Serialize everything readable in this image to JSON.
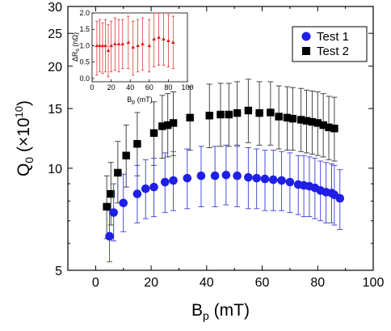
{
  "chart_data": [
    {
      "type": "scatter",
      "xlabel": "B",
      "xlabel_sub": "p",
      "xlabel_unit": " (mT)",
      "ylabel": "Q",
      "ylabel_sub": "0",
      "ylabel_unit_open": " (×10",
      "ylabel_sup": "10",
      "ylabel_unit_close": ")",
      "xlim": [
        -10,
        100
      ],
      "ylim": [
        5,
        30
      ],
      "yscale": "log",
      "x_ticks": [
        0,
        20,
        40,
        60,
        80,
        100
      ],
      "y_ticks": [
        5,
        10,
        15,
        20,
        25,
        30
      ],
      "legend_position": "top-right",
      "series": [
        {
          "name": "Test 1",
          "marker": "circle",
          "color": "#1f1fe6",
          "errorbar_color": "#3a3ad8",
          "points": [
            {
              "x": 5,
              "y": 6.3,
              "ylo": 5.3,
              "yhi": 7.5
            },
            {
              "x": 6.5,
              "y": 7.4,
              "ylo": 6.1,
              "yhi": 9.0
            },
            {
              "x": 10,
              "y": 7.9,
              "ylo": 6.5,
              "yhi": 9.6
            },
            {
              "x": 15,
              "y": 8.4,
              "ylo": 6.9,
              "yhi": 10.2
            },
            {
              "x": 18,
              "y": 8.7,
              "ylo": 7.1,
              "yhi": 10.6
            },
            {
              "x": 21,
              "y": 8.8,
              "ylo": 7.2,
              "yhi": 10.7
            },
            {
              "x": 25,
              "y": 9.1,
              "ylo": 7.4,
              "yhi": 11.1
            },
            {
              "x": 28,
              "y": 9.2,
              "ylo": 7.5,
              "yhi": 11.2
            },
            {
              "x": 33,
              "y": 9.35,
              "ylo": 7.6,
              "yhi": 11.4
            },
            {
              "x": 38,
              "y": 9.5,
              "ylo": 7.7,
              "yhi": 11.6
            },
            {
              "x": 43,
              "y": 9.5,
              "ylo": 7.7,
              "yhi": 11.6
            },
            {
              "x": 47,
              "y": 9.55,
              "ylo": 7.8,
              "yhi": 11.7
            },
            {
              "x": 51,
              "y": 9.5,
              "ylo": 7.7,
              "yhi": 11.6
            },
            {
              "x": 55,
              "y": 9.4,
              "ylo": 7.6,
              "yhi": 11.5
            },
            {
              "x": 58,
              "y": 9.35,
              "ylo": 7.6,
              "yhi": 11.4
            },
            {
              "x": 61,
              "y": 9.3,
              "ylo": 7.5,
              "yhi": 11.3
            },
            {
              "x": 64,
              "y": 9.25,
              "ylo": 7.5,
              "yhi": 11.3
            },
            {
              "x": 67,
              "y": 9.2,
              "ylo": 7.5,
              "yhi": 11.2
            },
            {
              "x": 70,
              "y": 9.1,
              "ylo": 7.4,
              "yhi": 11.1
            },
            {
              "x": 73,
              "y": 8.95,
              "ylo": 7.3,
              "yhi": 10.9
            },
            {
              "x": 75,
              "y": 8.9,
              "ylo": 7.2,
              "yhi": 10.9
            },
            {
              "x": 77,
              "y": 8.85,
              "ylo": 7.2,
              "yhi": 10.8
            },
            {
              "x": 79,
              "y": 8.75,
              "ylo": 7.1,
              "yhi": 10.7
            },
            {
              "x": 81,
              "y": 8.6,
              "ylo": 7.0,
              "yhi": 10.5
            },
            {
              "x": 83,
              "y": 8.5,
              "ylo": 6.9,
              "yhi": 10.4
            },
            {
              "x": 85,
              "y": 8.45,
              "ylo": 6.9,
              "yhi": 10.3
            },
            {
              "x": 86,
              "y": 8.35,
              "ylo": 6.8,
              "yhi": 10.2
            },
            {
              "x": 88,
              "y": 8.15,
              "ylo": 6.6,
              "yhi": 9.9
            }
          ]
        },
        {
          "name": "Test 2",
          "marker": "square",
          "color": "#000000",
          "errorbar_color": "#333333",
          "points": [
            {
              "x": 4,
              "y": 7.7,
              "ylo": 6.2,
              "yhi": 9.5
            },
            {
              "x": 5.5,
              "y": 8.4,
              "ylo": 6.8,
              "yhi": 10.4
            },
            {
              "x": 8,
              "y": 9.7,
              "ylo": 7.9,
              "yhi": 12.0
            },
            {
              "x": 11,
              "y": 10.9,
              "ylo": 8.8,
              "yhi": 13.4
            },
            {
              "x": 15,
              "y": 11.8,
              "ylo": 9.5,
              "yhi": 14.6
            },
            {
              "x": 21,
              "y": 12.7,
              "ylo": 10.2,
              "yhi": 15.7
            },
            {
              "x": 24,
              "y": 13.3,
              "ylo": 10.7,
              "yhi": 16.4
            },
            {
              "x": 26,
              "y": 13.4,
              "ylo": 10.8,
              "yhi": 16.6
            },
            {
              "x": 28,
              "y": 13.6,
              "ylo": 10.9,
              "yhi": 16.8
            },
            {
              "x": 34,
              "y": 14.1,
              "ylo": 11.3,
              "yhi": 17.4
            },
            {
              "x": 41,
              "y": 14.3,
              "ylo": 11.5,
              "yhi": 17.7
            },
            {
              "x": 45,
              "y": 14.4,
              "ylo": 11.6,
              "yhi": 17.8
            },
            {
              "x": 48,
              "y": 14.4,
              "ylo": 11.6,
              "yhi": 17.8
            },
            {
              "x": 51,
              "y": 14.55,
              "ylo": 11.7,
              "yhi": 18.0
            },
            {
              "x": 55,
              "y": 14.8,
              "ylo": 11.9,
              "yhi": 18.3
            },
            {
              "x": 59,
              "y": 14.55,
              "ylo": 11.7,
              "yhi": 18.0
            },
            {
              "x": 63,
              "y": 14.6,
              "ylo": 11.7,
              "yhi": 18.0
            },
            {
              "x": 66,
              "y": 14.2,
              "ylo": 11.4,
              "yhi": 17.5
            },
            {
              "x": 69,
              "y": 14.1,
              "ylo": 11.3,
              "yhi": 17.4
            },
            {
              "x": 71,
              "y": 14.0,
              "ylo": 11.3,
              "yhi": 17.3
            },
            {
              "x": 74,
              "y": 13.9,
              "ylo": 11.2,
              "yhi": 17.2
            },
            {
              "x": 76,
              "y": 13.8,
              "ylo": 11.1,
              "yhi": 17.0
            },
            {
              "x": 78,
              "y": 13.7,
              "ylo": 11.0,
              "yhi": 16.9
            },
            {
              "x": 80,
              "y": 13.6,
              "ylo": 10.9,
              "yhi": 16.8
            },
            {
              "x": 82,
              "y": 13.4,
              "ylo": 10.8,
              "yhi": 16.6
            },
            {
              "x": 84,
              "y": 13.2,
              "ylo": 10.6,
              "yhi": 16.3
            },
            {
              "x": 86,
              "y": 13.1,
              "ylo": 10.5,
              "yhi": 16.2
            }
          ]
        }
      ]
    },
    {
      "type": "scatter",
      "xlabel": "B",
      "xlabel_sub": "p",
      "xlabel_unit": " (mT)",
      "ylabel": "ΔR",
      "ylabel_sub": "s",
      "ylabel_unit": " (nΩ)",
      "xlim": [
        0,
        100
      ],
      "ylim": [
        -0.1,
        2.0
      ],
      "x_ticks": [
        0,
        20,
        40,
        60,
        80,
        100
      ],
      "y_ticks": [
        0.0,
        0.5,
        1.0,
        1.5,
        2.0
      ],
      "y_tick_labels": [
        "0.0",
        "0.5",
        "1.0",
        "1.5",
        "2.0"
      ],
      "series": [
        {
          "marker": "triangle",
          "color": "#e02020",
          "points": [
            {
              "x": 5,
              "y": 1.0,
              "ylo": 0.1,
              "yhi": 1.75
            },
            {
              "x": 8,
              "y": 1.0,
              "ylo": 0.2,
              "yhi": 1.8
            },
            {
              "x": 11,
              "y": 1.0,
              "ylo": 0.15,
              "yhi": 1.7
            },
            {
              "x": 14,
              "y": 1.0,
              "ylo": 0.2,
              "yhi": 1.8
            },
            {
              "x": 17,
              "y": 0.85,
              "ylo": 0.05,
              "yhi": 1.65
            },
            {
              "x": 20,
              "y": 1.0,
              "ylo": 0.2,
              "yhi": 1.75
            },
            {
              "x": 24,
              "y": 1.05,
              "ylo": 0.25,
              "yhi": 1.85
            },
            {
              "x": 28,
              "y": 1.05,
              "ylo": 0.2,
              "yhi": 1.8
            },
            {
              "x": 32,
              "y": 1.05,
              "ylo": 0.3,
              "yhi": 1.8
            },
            {
              "x": 38,
              "y": 1.1,
              "ylo": 0.3,
              "yhi": 1.9
            },
            {
              "x": 43,
              "y": 0.95,
              "ylo": 0.1,
              "yhi": 1.75
            },
            {
              "x": 48,
              "y": 1.0,
              "ylo": 0.2,
              "yhi": 1.8
            },
            {
              "x": 53,
              "y": 1.05,
              "ylo": 0.25,
              "yhi": 1.85
            },
            {
              "x": 60,
              "y": 1.0,
              "ylo": 0.2,
              "yhi": 1.8
            },
            {
              "x": 65,
              "y": 1.2,
              "ylo": 0.35,
              "yhi": 2.0
            },
            {
              "x": 70,
              "y": 1.25,
              "ylo": 0.4,
              "yhi": 2.0
            },
            {
              "x": 75,
              "y": 1.2,
              "ylo": 0.4,
              "yhi": 2.0
            },
            {
              "x": 80,
              "y": 1.15,
              "ylo": 0.35,
              "yhi": 1.95
            },
            {
              "x": 85,
              "y": 1.1,
              "ylo": 0.3,
              "yhi": 1.9
            }
          ]
        }
      ]
    }
  ]
}
